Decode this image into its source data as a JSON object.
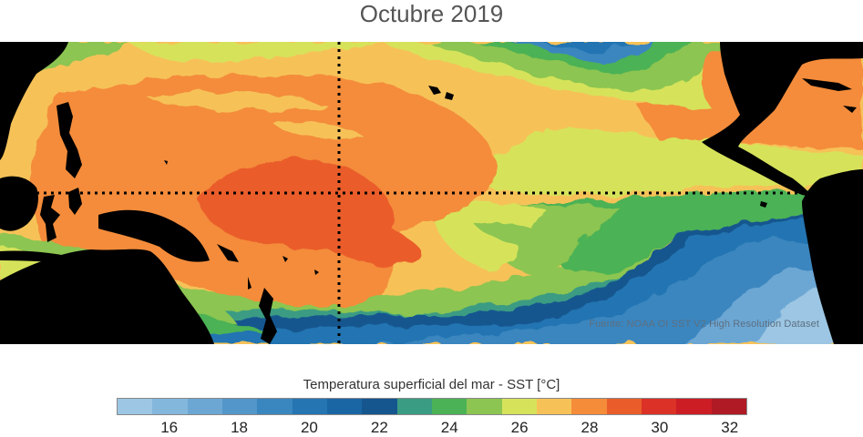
{
  "title": "Octubre 2019",
  "source_note": "Fuente: NOAA OI SST V2 High Resolution Dataset",
  "colorbar": {
    "title": "Temperatura superficial del mar - SST  [°C]",
    "colors": [
      "#9cc6e3",
      "#84b7dc",
      "#6ca7d4",
      "#5396c9",
      "#3a86bf",
      "#2475b2",
      "#1a66a5",
      "#15568f",
      "#3a9c83",
      "#4bb255",
      "#8cc551",
      "#d6e35a",
      "#f6c258",
      "#f48c3a",
      "#ea5d2b",
      "#db3126",
      "#cc1d25",
      "#b01a24"
    ],
    "min": 15,
    "max": 33,
    "ticks": [
      "16",
      "18",
      "20",
      "22",
      "24",
      "26",
      "28",
      "30",
      "32"
    ]
  },
  "reference_lines": {
    "equator": "0°",
    "meridian": "180°"
  }
}
